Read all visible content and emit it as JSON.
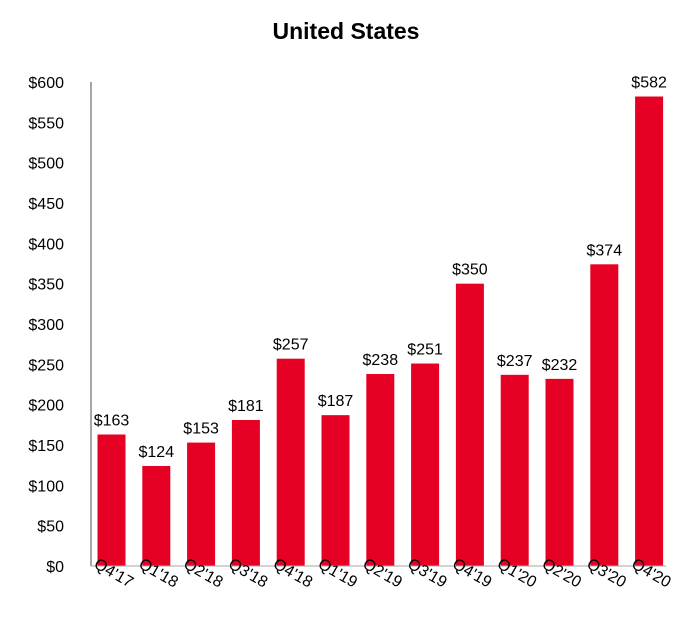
{
  "chart_data": {
    "type": "bar",
    "title": "United States",
    "xlabel": "",
    "ylabel": "",
    "categories": [
      "Q4'17",
      "Q1'18",
      "Q2'18",
      "Q3'18",
      "Q4'18",
      "Q1'19",
      "Q2'19",
      "Q3'19",
      "Q4'19",
      "Q1'20",
      "Q2'20",
      "Q3'20",
      "Q4'20"
    ],
    "values": [
      163,
      124,
      153,
      181,
      257,
      187,
      238,
      251,
      350,
      237,
      232,
      374,
      582
    ],
    "value_labels": [
      "$163",
      "$124",
      "$153",
      "$181",
      "$257",
      "$187",
      "$238",
      "$251",
      "$350",
      "$237",
      "$232",
      "$374",
      "$582"
    ],
    "ylim": [
      0,
      600
    ],
    "y_ticks": [
      0,
      50,
      100,
      150,
      200,
      250,
      300,
      350,
      400,
      450,
      500,
      550,
      600
    ],
    "y_tick_labels": [
      "$0",
      "$50",
      "$100",
      "$150",
      "$200",
      "$250",
      "$300",
      "$350",
      "$400",
      "$450",
      "$500",
      "$550",
      "$600"
    ],
    "grid": false,
    "legend": "none",
    "bar_color": "#e60023",
    "axis_color": "#a6a6a6"
  }
}
